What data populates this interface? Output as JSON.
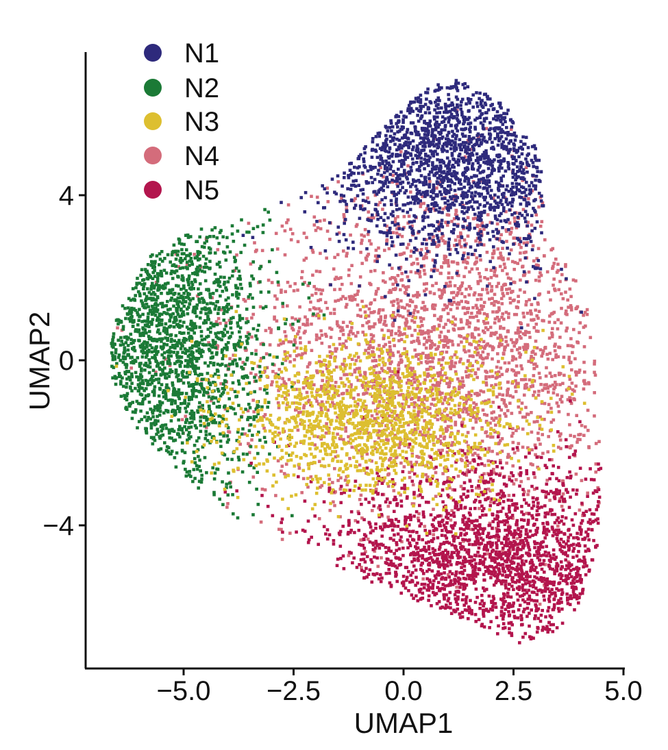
{
  "chart_data": {
    "type": "scatter",
    "title": "",
    "xlabel": "UMAP1",
    "ylabel": "UMAP2",
    "xlim": [
      -7.2,
      5.0
    ],
    "ylim": [
      -7.5,
      7.5
    ],
    "x_ticks": [
      -5.0,
      -2.5,
      0.0,
      2.5,
      5.0
    ],
    "x_tick_labels": [
      "−5.0",
      "−2.5",
      "0.0",
      "2.5",
      "5.0"
    ],
    "y_ticks": [
      4,
      0,
      -4
    ],
    "y_tick_labels": [
      "4",
      "0",
      "−4"
    ],
    "grid": false,
    "legend_position": "top-left",
    "series": [
      {
        "name": "N1",
        "color": "#2e2a7c",
        "center": [
          1.2,
          4.9
        ],
        "spread": [
          1.5,
          1.2
        ]
      },
      {
        "name": "N2",
        "color": "#1b7a36",
        "center": [
          -5.4,
          0.4
        ],
        "spread": [
          1.1,
          2.0
        ]
      },
      {
        "name": "N3",
        "color": "#ddbf30",
        "center": [
          -0.7,
          -1.4
        ],
        "spread": [
          1.6,
          0.9
        ]
      },
      {
        "name": "N4",
        "color": "#d46c7b",
        "center": [
          1.0,
          0.3
        ],
        "spread": [
          2.4,
          2.0
        ]
      },
      {
        "name": "N5",
        "color": "#b3154d",
        "center": [
          2.2,
          -4.9
        ],
        "spread": [
          2.0,
          1.2
        ]
      }
    ],
    "outline": [
      [
        -6.7,
        0.3
      ],
      [
        -6.5,
        1.1
      ],
      [
        -5.8,
        2.5
      ],
      [
        -4.9,
        3.1
      ],
      [
        -3.5,
        3.5
      ],
      [
        -1.5,
        4.5
      ],
      [
        -0.5,
        5.6
      ],
      [
        0.5,
        6.6
      ],
      [
        1.2,
        6.8
      ],
      [
        2.2,
        6.3
      ],
      [
        3.0,
        5.3
      ],
      [
        3.2,
        4.4
      ],
      [
        3.2,
        3.0
      ],
      [
        3.8,
        2.2
      ],
      [
        4.2,
        1.3
      ],
      [
        4.4,
        -0.5
      ],
      [
        4.5,
        -2.5
      ],
      [
        4.4,
        -4.5
      ],
      [
        4.0,
        -6.0
      ],
      [
        3.3,
        -6.8
      ],
      [
        2.6,
        -6.9
      ],
      [
        1.0,
        -6.1
      ],
      [
        -0.8,
        -5.4
      ],
      [
        -2.5,
        -4.5
      ],
      [
        -3.8,
        -3.9
      ],
      [
        -5.0,
        -2.8
      ],
      [
        -6.1,
        -1.6
      ],
      [
        -6.6,
        -0.6
      ]
    ]
  }
}
